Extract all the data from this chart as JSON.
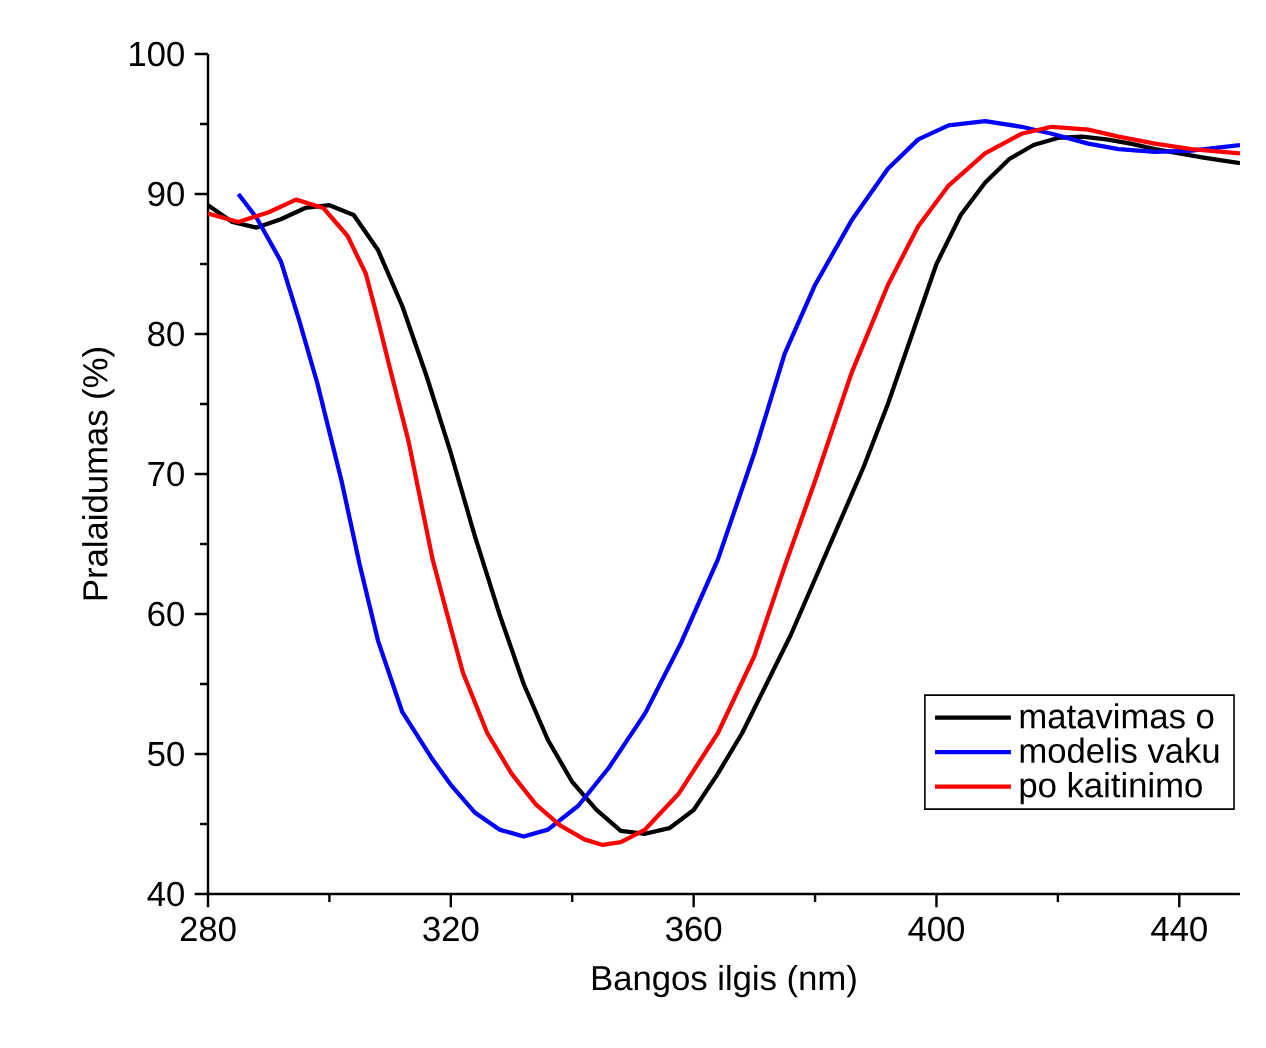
{
  "chart_data": {
    "type": "line",
    "xlabel": "Bangos ilgis (nm)",
    "ylabel": "Pralaidumas (%)",
    "xlim": [
      280,
      450
    ],
    "xticks": [
      280,
      320,
      360,
      400,
      440
    ],
    "ylim": [
      40,
      100
    ],
    "yticks": [
      40,
      50,
      60,
      70,
      80,
      90,
      100
    ],
    "grid": false,
    "legend": "bottom right",
    "marker": "none",
    "line_style": "solid",
    "series": [
      {
        "name": "matavimas o",
        "color": "#000000",
        "x": [
          280,
          284,
          288,
          292,
          296,
          300,
          304,
          308,
          312,
          316,
          320,
          324,
          328,
          332,
          336,
          340,
          344,
          348,
          352,
          356,
          360,
          364,
          368,
          372,
          376,
          380,
          384,
          388,
          392,
          396,
          400,
          404,
          408,
          412,
          416,
          420,
          424,
          428,
          432,
          436,
          440,
          444,
          450
        ],
        "values": [
          89.2,
          88,
          87.6,
          88.2,
          89,
          89.2,
          88.5,
          86,
          82,
          77,
          71.5,
          65.5,
          60,
          55,
          51,
          48,
          46,
          44.5,
          44.3,
          44.7,
          46,
          48.6,
          51.5,
          55,
          58.5,
          62.5,
          66.5,
          70.5,
          75,
          80,
          85,
          88.5,
          90.8,
          92.5,
          93.5,
          94,
          94.1,
          93.9,
          93.6,
          93.2,
          92.9,
          92.6,
          92.2
        ]
      },
      {
        "name": "modelis vaku",
        "color": "#0000ff",
        "x": [
          285,
          288,
          292,
          295,
          298,
          302,
          305,
          308,
          312,
          317,
          320,
          324,
          328,
          332,
          336,
          341,
          346,
          352,
          358,
          364,
          370,
          375,
          380,
          386,
          392,
          397,
          402,
          408,
          414,
          419,
          425,
          430,
          436,
          442,
          450
        ],
        "values": [
          90,
          88.3,
          85.2,
          81,
          76.5,
          69.5,
          63.5,
          58.1,
          53,
          49.6,
          47.8,
          45.8,
          44.6,
          44.1,
          44.6,
          46.3,
          49,
          52.9,
          58,
          63.9,
          71.5,
          78.6,
          83.5,
          88.1,
          91.8,
          93.9,
          94.9,
          95.2,
          94.8,
          94.3,
          93.6,
          93.2,
          93,
          93.1,
          93.5
        ]
      },
      {
        "name": "po kaitinimo",
        "color": "#ff0000",
        "x": [
          280,
          285,
          290,
          294.5,
          299,
          303,
          306,
          308,
          310,
          313,
          317,
          320,
          322,
          326,
          330,
          334,
          338,
          342,
          345,
          348,
          352,
          357.6,
          364,
          370,
          375,
          380,
          386,
          392,
          397,
          402,
          408,
          414,
          419,
          425,
          430,
          436,
          442,
          450
        ],
        "values": [
          88.6,
          88,
          88.7,
          89.6,
          89,
          87,
          84.3,
          81,
          77.5,
          72.4,
          63.9,
          59,
          55.8,
          51.5,
          48.6,
          46.4,
          44.9,
          43.9,
          43.5,
          43.7,
          44.6,
          47.2,
          51.5,
          57,
          63.4,
          69.5,
          77.2,
          83.5,
          87.7,
          90.6,
          92.9,
          94.3,
          94.8,
          94.6,
          94.1,
          93.6,
          93.2,
          92.9
        ]
      }
    ]
  }
}
